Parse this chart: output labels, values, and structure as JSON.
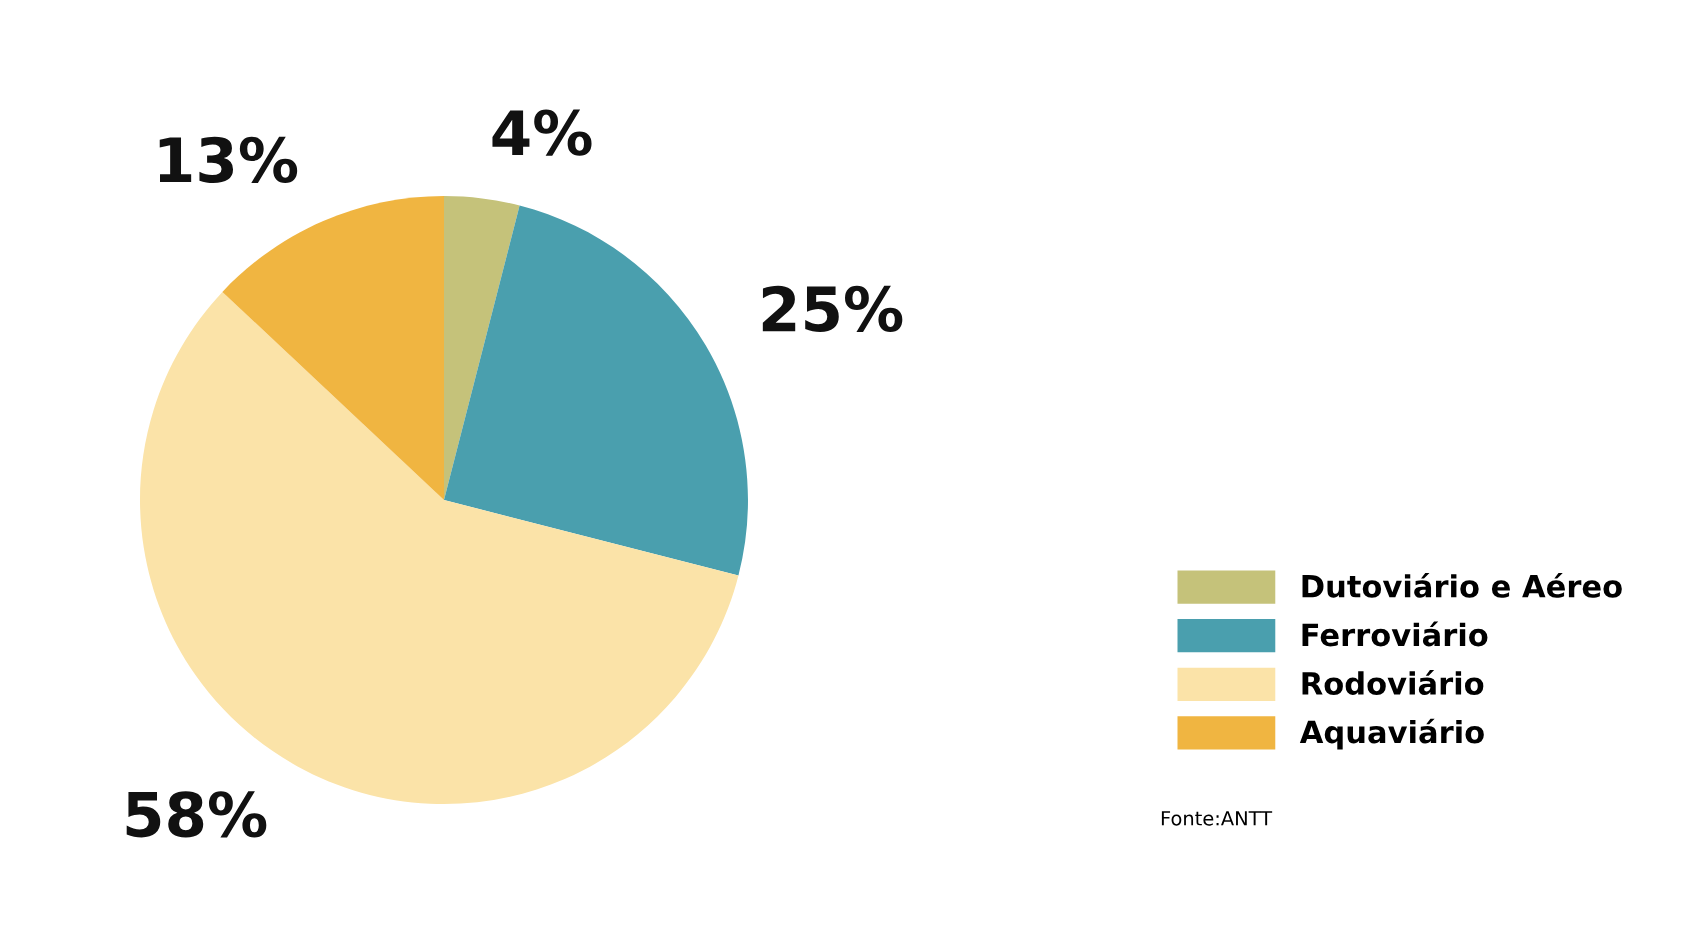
{
  "chart_data": {
    "type": "pie",
    "categories": [
      "Dutoviário e Aéreo",
      "Ferroviário",
      "Rodoviário",
      "Aquaviário"
    ],
    "values": [
      4,
      25,
      58,
      13
    ],
    "colors": [
      "#c5c27a",
      "#4a9fae",
      "#fbe3a8",
      "#f0b541"
    ],
    "value_labels": [
      "4%",
      "25%",
      "58%",
      "13%"
    ],
    "legend": "right",
    "annotations": [
      "Fonte:ANTT"
    ]
  }
}
